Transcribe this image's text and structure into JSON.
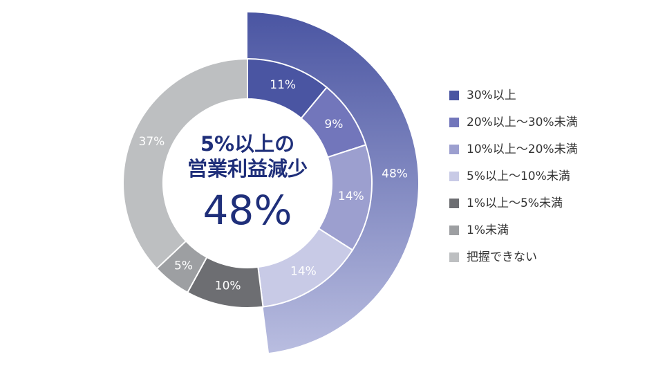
{
  "chart_data": {
    "type": "donut",
    "categories": [
      "30%以上",
      "20%以上〜30%未満",
      "10%以上〜20%未満",
      "5%以上〜10%未満",
      "1%以上〜5%未満",
      "1%未満",
      "把握できない"
    ],
    "values": [
      11,
      9,
      14,
      14,
      10,
      5,
      37
    ],
    "value_labels": [
      "11%",
      "9%",
      "14%",
      "14%",
      "10%",
      "5%",
      "37%"
    ],
    "colors": [
      "#4a55a2",
      "#7276bb",
      "#9c9fcf",
      "#c8cae6",
      "#6d6e72",
      "#9d9fa2",
      "#bdbfc1"
    ],
    "outer_ring": {
      "value": 48,
      "value_label": "48%",
      "colors": [
        "#4a55a2",
        "#b9bde0"
      ]
    },
    "center_lines": [
      "5%以上の",
      "営業利益減少",
      "48%"
    ]
  }
}
